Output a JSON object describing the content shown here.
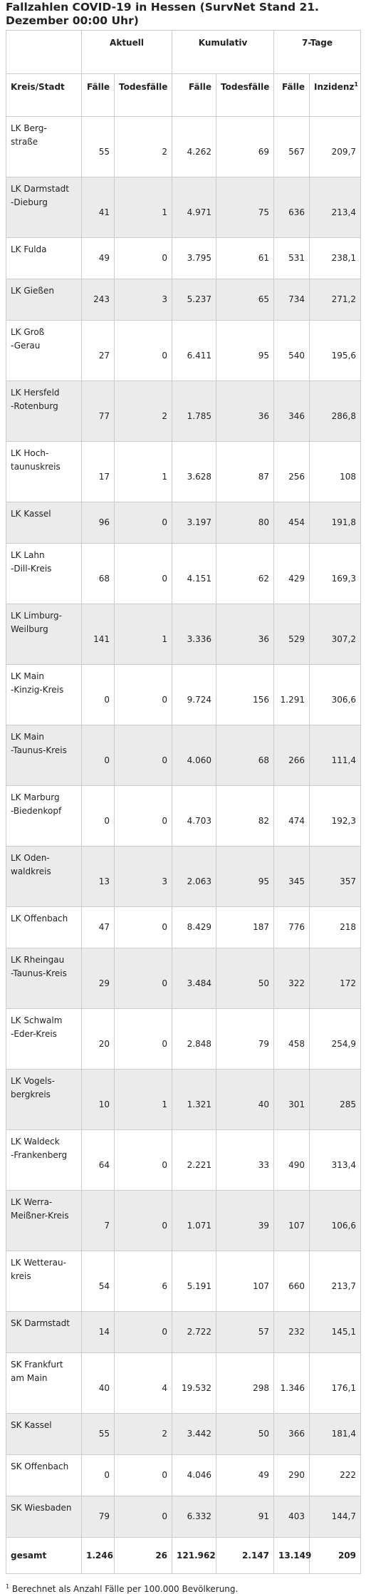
{
  "title": "Fallzahlen COVID-19 in Hessen (SurvNet Stand 21. Dezember 00:00 Uhr)",
  "groups": {
    "aktuell": "Aktuell",
    "kumulativ": "Kumulativ",
    "sieben_tage": "7-Tage"
  },
  "columns": {
    "kreis": "Kreis/Stadt",
    "akt_faelle": "Fälle",
    "akt_tod": "Todesfälle",
    "kum_faelle": "Fälle",
    "kum_tod": "Todesfälle",
    "sieben_faelle": "Fälle",
    "inzidenz": "Inzidenz",
    "inzidenz_mark": "1"
  },
  "rows": [
    {
      "name": "LK Berg-\nstraße",
      "akt_f": "55",
      "akt_t": "2",
      "kum_f": "4.262",
      "kum_t": "69",
      "s_f": "567",
      "inz": "209,7"
    },
    {
      "name": "LK Darmstadt\n-Dieburg",
      "akt_f": "41",
      "akt_t": "1",
      "kum_f": "4.971",
      "kum_t": "75",
      "s_f": "636",
      "inz": "213,4"
    },
    {
      "name": "LK Fulda",
      "akt_f": "49",
      "akt_t": "0",
      "kum_f": "3.795",
      "kum_t": "61",
      "s_f": "531",
      "inz": "238,1"
    },
    {
      "name": "LK Gießen",
      "akt_f": "243",
      "akt_t": "3",
      "kum_f": "5.237",
      "kum_t": "65",
      "s_f": "734",
      "inz": "271,2"
    },
    {
      "name": "LK Groß\n-Gerau",
      "akt_f": "27",
      "akt_t": "0",
      "kum_f": "6.411",
      "kum_t": "95",
      "s_f": "540",
      "inz": "195,6"
    },
    {
      "name": "LK Hersfeld\n-Rotenburg",
      "akt_f": "77",
      "akt_t": "2",
      "kum_f": "1.785",
      "kum_t": "36",
      "s_f": "346",
      "inz": "286,8"
    },
    {
      "name": "LK Hoch-\ntaunuskreis",
      "akt_f": "17",
      "akt_t": "1",
      "kum_f": "3.628",
      "kum_t": "87",
      "s_f": "256",
      "inz": "108"
    },
    {
      "name": "LK Kassel",
      "akt_f": "96",
      "akt_t": "0",
      "kum_f": "3.197",
      "kum_t": "80",
      "s_f": "454",
      "inz": "191,8"
    },
    {
      "name": "LK Lahn\n-Dill-Kreis",
      "akt_f": "68",
      "akt_t": "0",
      "kum_f": "4.151",
      "kum_t": "62",
      "s_f": "429",
      "inz": "169,3"
    },
    {
      "name": "LK Limburg-\nWeilburg",
      "akt_f": "141",
      "akt_t": "1",
      "kum_f": "3.336",
      "kum_t": "36",
      "s_f": "529",
      "inz": "307,2"
    },
    {
      "name": "LK Main\n-Kinzig-Kreis",
      "akt_f": "0",
      "akt_t": "0",
      "kum_f": "9.724",
      "kum_t": "156",
      "s_f": "1.291",
      "inz": "306,6"
    },
    {
      "name": "LK Main\n-Taunus-Kreis",
      "akt_f": "0",
      "akt_t": "0",
      "kum_f": "4.060",
      "kum_t": "68",
      "s_f": "266",
      "inz": "111,4"
    },
    {
      "name": "LK Marburg\n-Biedenkopf",
      "akt_f": "0",
      "akt_t": "0",
      "kum_f": "4.703",
      "kum_t": "82",
      "s_f": "474",
      "inz": "192,3"
    },
    {
      "name": "LK Oden-\nwaldkreis",
      "akt_f": "13",
      "akt_t": "3",
      "kum_f": "2.063",
      "kum_t": "95",
      "s_f": "345",
      "inz": "357"
    },
    {
      "name": "LK Offenbach",
      "akt_f": "47",
      "akt_t": "0",
      "kum_f": "8.429",
      "kum_t": "187",
      "s_f": "776",
      "inz": "218"
    },
    {
      "name": "LK Rheingau\n-Taunus-Kreis",
      "akt_f": "29",
      "akt_t": "0",
      "kum_f": "3.484",
      "kum_t": "50",
      "s_f": "322",
      "inz": "172"
    },
    {
      "name": "LK Schwalm\n-Eder-Kreis",
      "akt_f": "20",
      "akt_t": "0",
      "kum_f": "2.848",
      "kum_t": "79",
      "s_f": "458",
      "inz": "254,9"
    },
    {
      "name": "LK Vogels-\nbergkreis",
      "akt_f": "10",
      "akt_t": "1",
      "kum_f": "1.321",
      "kum_t": "40",
      "s_f": "301",
      "inz": "285"
    },
    {
      "name": "LK Waldeck\n-Frankenberg",
      "akt_f": "64",
      "akt_t": "0",
      "kum_f": "2.221",
      "kum_t": "33",
      "s_f": "490",
      "inz": "313,4"
    },
    {
      "name": "LK Werra-\nMeißner-Kreis",
      "akt_f": "7",
      "akt_t": "0",
      "kum_f": "1.071",
      "kum_t": "39",
      "s_f": "107",
      "inz": "106,6"
    },
    {
      "name": "LK Wetterau-\nkreis",
      "akt_f": "54",
      "akt_t": "6",
      "kum_f": "5.191",
      "kum_t": "107",
      "s_f": "660",
      "inz": "213,7"
    },
    {
      "name": "SK Darmstadt",
      "akt_f": "14",
      "akt_t": "0",
      "kum_f": "2.722",
      "kum_t": "57",
      "s_f": "232",
      "inz": "145,1"
    },
    {
      "name": "SK Frankfurt\nam Main",
      "akt_f": "40",
      "akt_t": "4",
      "kum_f": "19.532",
      "kum_t": "298",
      "s_f": "1.346",
      "inz": "176,1"
    },
    {
      "name": "SK Kassel",
      "akt_f": "55",
      "akt_t": "2",
      "kum_f": "3.442",
      "kum_t": "50",
      "s_f": "366",
      "inz": "181,4"
    },
    {
      "name": "SK Offenbach",
      "akt_f": "0",
      "akt_t": "0",
      "kum_f": "4.046",
      "kum_t": "49",
      "s_f": "290",
      "inz": "222"
    },
    {
      "name": "SK Wiesbaden",
      "akt_f": "79",
      "akt_t": "0",
      "kum_f": "6.332",
      "kum_t": "91",
      "s_f": "403",
      "inz": "144,7"
    }
  ],
  "total": {
    "name": "gesamt",
    "akt_f": "1.246",
    "akt_t": "26",
    "kum_f": "121.962",
    "kum_t": "2.147",
    "s_f": "13.149",
    "inz": "209"
  },
  "footnote": {
    "mark": "1",
    "text": " Berechnet als Anzahl Fälle per 100.000 Bevölkerung."
  }
}
